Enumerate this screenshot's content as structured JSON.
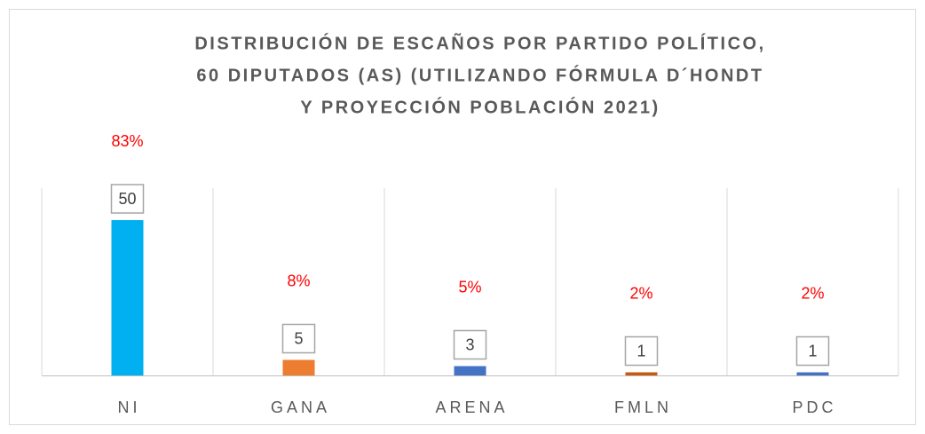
{
  "chart_data": {
    "type": "bar",
    "title": [
      "DISTRIBUCIÓN DE ESCAÑOS POR PARTIDO POLÍTICO,",
      "60 DIPUTADOS (AS) (UTILIZANDO FÓRMULA D´HONDT",
      "Y PROYECCIÓN POBLACIÓN 2021)"
    ],
    "categories": [
      "NI",
      "GANA",
      "ARENA",
      "FMLN",
      "PDC"
    ],
    "values": [
      50,
      5,
      3,
      1,
      1
    ],
    "colors": [
      "#00b0f0",
      "#ed7d31",
      "#4472c4",
      "#c55a11",
      "#4472c4"
    ],
    "annotations": [
      "83%",
      "8%",
      "5%",
      "2%",
      "2%"
    ],
    "ylim": [
      0,
      50
    ],
    "grid": true
  }
}
